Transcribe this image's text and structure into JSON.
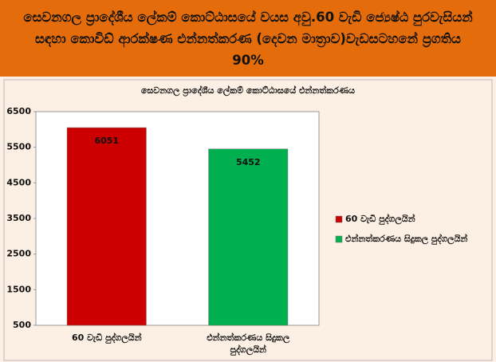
{
  "header": {
    "title": "සෙවනගල ප්‍රාදේශීය ලේකම් කොට්ඨාසයේ වයස අවු.60 වැඩි ජ්‍යෙෂ්ඨ පුරවැසියන් සඳහා කොවිඩ් ආරක්ෂණ එන්නත්කරණ (දෙවන මාත්‍රාව)වැඩසටහනේ ප්‍රගතිය 90%"
  },
  "chart_data": {
    "type": "bar",
    "title": "සෙවනගල ප්‍රාදේශීය ලේකම්  කොට්ඨාසයේ එන්නත්කරණය",
    "categories": [
      "60 වැඩි පුද්ගලයින්",
      "එන්නත්කරණය සිදුකල පුද්ගලයින්"
    ],
    "values": [
      6051,
      5452
    ],
    "colors": [
      "#cc0000",
      "#00b050"
    ],
    "ylim": [
      500,
      6500
    ],
    "yticks": [
      500,
      1500,
      2500,
      3500,
      4500,
      5500,
      6500
    ],
    "grid": false,
    "legend": "right"
  }
}
